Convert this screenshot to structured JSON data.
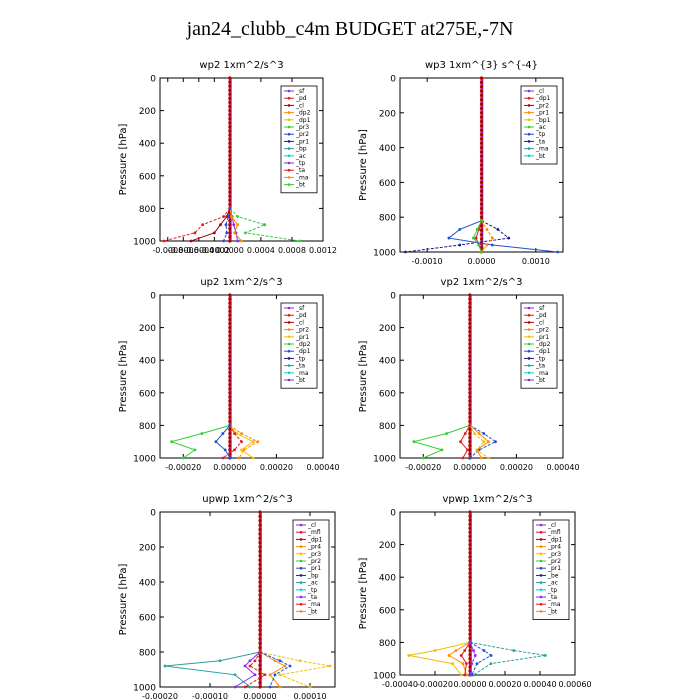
{
  "page": {
    "title": "jan24_clubb_c4m  BUDGET at275E,-7N"
  },
  "series_colors": {
    "purple": "#8a2be2",
    "red": "#e41a1c",
    "dark_red": "#b00000",
    "orange": "#ff8c00",
    "yellow": "#f0c000",
    "green": "#33cc33",
    "blue": "#1f4fd6",
    "navy": "#1a1a99",
    "teal": "#2a9fa0",
    "cyan": "#00d0e0"
  },
  "chart_data": [
    {
      "type": "line",
      "title": "wp2   1xm^2/s^3",
      "ylabel": "Pressure [hPa]",
      "ylim": [
        1000,
        0
      ],
      "yticks": [
        "0",
        "200",
        "400",
        "600",
        "800",
        "1000"
      ],
      "xlim": [
        -0.0009,
        0.0012
      ],
      "xticks": [
        "-0.0008",
        "-0.0006",
        "-0.0004",
        "-0.0002",
        "0.0000",
        "0.0004",
        "0.0008",
        "0.0012"
      ],
      "xtick_values": [
        -0.0008,
        -0.0006,
        -0.0004,
        -0.0002,
        0.0,
        0.0004,
        0.0008,
        0.0012
      ],
      "legend": [
        "_sf",
        "_pd",
        "_cl",
        "_dp2",
        "_dp1",
        "_pr3",
        "_pr2",
        "_pr1",
        "_bp",
        "_ac",
        "_tp",
        "_ta",
        "_ma",
        "_bt"
      ],
      "legend_placement": "top-right",
      "series": [
        {
          "color": "purple",
          "pressure": [
            800,
            850,
            900,
            950,
            1000
          ],
          "values": [
            0.0,
            3e-05,
            5e-05,
            8e-05,
            0.0001
          ]
        },
        {
          "color": "red",
          "pressure": [
            800,
            850,
            900,
            950,
            1000
          ],
          "values": [
            0.0,
            -8e-05,
            -0.00035,
            -0.00045,
            -0.00085
          ]
        },
        {
          "color": "dark_red",
          "pressure": [
            800,
            850,
            900,
            950,
            1000
          ],
          "values": [
            0.0,
            -4e-05,
            -0.00012,
            -0.0002,
            -0.0005
          ]
        },
        {
          "color": "green",
          "pressure": [
            800,
            850,
            900,
            950,
            1000
          ],
          "values": [
            0.0,
            0.0001,
            0.00045,
            0.0002,
            0.0009
          ]
        },
        {
          "color": "orange",
          "pressure": [
            800,
            850,
            900,
            950,
            1000
          ],
          "values": [
            0.0,
            2e-05,
            0.0001,
            6e-05,
            0.00015
          ]
        },
        {
          "color": "blue",
          "pressure": [
            800,
            850,
            900,
            950,
            1000
          ],
          "values": [
            0.0,
            -2e-05,
            -5e-05,
            -4e-05,
            -8e-05
          ]
        }
      ]
    },
    {
      "type": "line",
      "title": "wp3   1xm^{3} s^{-4}",
      "ylabel": "Pressure [hPa]",
      "ylim": [
        1000,
        0
      ],
      "yticks": [
        "0",
        "200",
        "400",
        "600",
        "800",
        "1000"
      ],
      "xlim": [
        -0.0015,
        0.0015
      ],
      "xticks": [
        "-0.0010",
        "0.0000",
        "0.0010"
      ],
      "xtick_values": [
        -0.001,
        0.0,
        0.001
      ],
      "legend": [
        "_cl",
        "_dp1",
        "_pr2",
        "_pr1",
        "_bp1",
        "_ac",
        "_tp",
        "_ta",
        "_ma",
        "_bt"
      ],
      "legend_placement": "top-right",
      "series": [
        {
          "color": "red",
          "pressure": [
            820,
            870,
            920,
            960,
            1000
          ],
          "values": [
            0.0,
            -5e-05,
            -0.0001,
            -5e-05,
            0.0
          ]
        },
        {
          "color": "navy",
          "pressure": [
            820,
            870,
            920,
            960,
            1000
          ],
          "values": [
            0.0,
            0.0003,
            0.0005,
            -0.0004,
            -0.0014
          ]
        },
        {
          "color": "blue",
          "pressure": [
            820,
            870,
            920,
            960,
            1000
          ],
          "values": [
            0.0,
            -0.0004,
            -0.0006,
            0.0002,
            0.0014
          ]
        },
        {
          "color": "orange",
          "pressure": [
            820,
            870,
            920,
            960,
            1000
          ],
          "values": [
            0.0,
            0.0001,
            0.0002,
            0.0001,
            0.0
          ]
        },
        {
          "color": "green",
          "pressure": [
            820,
            870,
            920,
            960,
            1000
          ],
          "values": [
            0.0,
            -8e-05,
            -0.00015,
            -5e-05,
            0.0
          ]
        }
      ]
    },
    {
      "type": "line",
      "title": "up2   1xm^2/s^3",
      "ylabel": "Pressure [hPa]",
      "ylim": [
        1000,
        0
      ],
      "yticks": [
        "0",
        "200",
        "400",
        "600",
        "800",
        "1000"
      ],
      "xlim": [
        -0.0003,
        0.0004
      ],
      "xticks": [
        "-0.00020",
        "0.00000",
        "0.00020",
        "0.00040"
      ],
      "xtick_values": [
        -0.0002,
        0.0,
        0.0002,
        0.0004
      ],
      "legend": [
        "_sf",
        "_pd",
        "_cl",
        "_pr2",
        "_pr1",
        "_dp2",
        "_dp1",
        "_tp",
        "_ta",
        "_ma",
        "_bt"
      ],
      "legend_placement": "top-right",
      "series": [
        {
          "color": "green",
          "pressure": [
            800,
            850,
            900,
            950,
            1000
          ],
          "values": [
            0.0,
            -0.00012,
            -0.00025,
            -0.00015,
            -0.0002
          ]
        },
        {
          "color": "orange",
          "pressure": [
            800,
            850,
            900,
            950,
            1000
          ],
          "values": [
            0.0,
            5e-05,
            0.00012,
            6e-05,
            4e-05
          ]
        },
        {
          "color": "yellow",
          "pressure": [
            800,
            850,
            900,
            950,
            1000
          ],
          "values": [
            0.0,
            3e-05,
            0.0001,
            5e-05,
            0.0001
          ]
        },
        {
          "color": "red",
          "pressure": [
            800,
            850,
            900,
            950,
            1000
          ],
          "values": [
            0.0,
            2e-05,
            5e-05,
            2e-05,
            -3e-05
          ]
        },
        {
          "color": "blue",
          "pressure": [
            800,
            850,
            900,
            950,
            1000
          ],
          "values": [
            0.0,
            -3e-05,
            -6e-05,
            -2e-05,
            0.0
          ]
        }
      ]
    },
    {
      "type": "line",
      "title": "vp2   1xm^2/s^3",
      "ylabel": "Pressure [hPa]",
      "ylim": [
        1000,
        0
      ],
      "yticks": [
        "0",
        "200",
        "400",
        "600",
        "800",
        "1000"
      ],
      "xlim": [
        -0.0003,
        0.0004
      ],
      "xticks": [
        "-0.00020",
        "0.00000",
        "0.00020",
        "0.00040"
      ],
      "xtick_values": [
        -0.0002,
        0.0,
        0.0002,
        0.0004
      ],
      "legend": [
        "_sf",
        "_pd",
        "_cl",
        "_pr2",
        "_pr1",
        "_dp2",
        "_dp1",
        "_tp",
        "_ta",
        "_ma",
        "_bt"
      ],
      "legend_placement": "top-right",
      "series": [
        {
          "color": "green",
          "pressure": [
            800,
            850,
            900,
            950,
            1000
          ],
          "values": [
            0.0,
            -0.0001,
            -0.00024,
            -0.00012,
            -0.0002
          ]
        },
        {
          "color": "blue",
          "pressure": [
            800,
            850,
            900,
            950,
            1000
          ],
          "values": [
            0.0,
            6e-05,
            0.00011,
            4e-05,
            0.0
          ]
        },
        {
          "color": "orange",
          "pressure": [
            800,
            850,
            900,
            950,
            1000
          ],
          "values": [
            0.0,
            4e-05,
            8e-05,
            3e-05,
            5e-05
          ]
        },
        {
          "color": "yellow",
          "pressure": [
            800,
            850,
            900,
            950,
            1000
          ],
          "values": [
            0.0,
            2e-05,
            6e-05,
            3e-05,
            8e-05
          ]
        },
        {
          "color": "red",
          "pressure": [
            800,
            850,
            900,
            950,
            1000
          ],
          "values": [
            0.0,
            -2e-05,
            -4e-05,
            -1e-05,
            -3e-05
          ]
        }
      ]
    },
    {
      "type": "line",
      "title": "upwp   1xm^2/s^3",
      "ylabel": "Pressure [hPa]",
      "ylim": [
        1000,
        0
      ],
      "yticks": [
        "0",
        "200",
        "400",
        "600",
        "800",
        "1000"
      ],
      "xlim": [
        -0.0002,
        0.00015
      ],
      "xticks": [
        "-0.00020",
        "-0.00010",
        "0.00000",
        "0.00010"
      ],
      "xtick_values": [
        -0.0002,
        -0.0001,
        0.0,
        0.0001
      ],
      "legend": [
        "_cl",
        "_mfl",
        "_dp1",
        "_pr4",
        "_pr3",
        "_pr2",
        "_pr1",
        "_bp",
        "_ac",
        "_tp",
        "_ta",
        "_ma",
        "_bt"
      ],
      "legend_placement": "top-right",
      "series": [
        {
          "color": "teal",
          "pressure": [
            800,
            850,
            880,
            930,
            1000
          ],
          "values": [
            0.0,
            -8e-05,
            -0.00019,
            -5e-05,
            -2e-05
          ]
        },
        {
          "color": "yellow",
          "pressure": [
            800,
            850,
            880,
            930,
            1000
          ],
          "values": [
            0.0,
            8e-05,
            0.00014,
            4e-05,
            0.0001
          ]
        },
        {
          "color": "orange",
          "pressure": [
            800,
            850,
            880,
            930,
            1000
          ],
          "values": [
            0.0,
            3e-05,
            5e-05,
            2e-05,
            4e-05
          ]
        },
        {
          "color": "blue",
          "pressure": [
            800,
            850,
            880,
            930,
            1000
          ],
          "values": [
            0.0,
            4e-05,
            6e-05,
            3e-05,
            2e-05
          ]
        },
        {
          "color": "purple",
          "pressure": [
            800,
            850,
            880,
            930,
            1000
          ],
          "values": [
            0.0,
            -2e-05,
            -3e-05,
            -1e-05,
            -5e-05
          ]
        },
        {
          "color": "red",
          "pressure": [
            800,
            850,
            880,
            930,
            1000
          ],
          "values": [
            0.0,
            -1e-05,
            -2e-05,
            1e-05,
            -3e-05
          ]
        }
      ]
    },
    {
      "type": "line",
      "title": "vpwp   1xm^2/s^3",
      "ylabel": "Pressure [hPa]",
      "ylim": [
        1000,
        0
      ],
      "yticks": [
        "0",
        "200",
        "400",
        "600",
        "800",
        "1000"
      ],
      "xlim": [
        -0.0004,
        0.0006
      ],
      "xticks": [
        "-0.00040",
        "-0.00020",
        "0.00000",
        "0.00020",
        "0.00040",
        "0.00060"
      ],
      "xtick_values": [
        -0.0004,
        -0.0002,
        0.0,
        0.0002,
        0.0004,
        0.0006
      ],
      "legend": [
        "_cl",
        "_mfl",
        "_dp1",
        "_pr4",
        "_pr3",
        "_pr2",
        "_pr1",
        "_be",
        "_ac",
        "_tp",
        "_ta",
        "_ma",
        "_bt"
      ],
      "legend_placement": "top-right",
      "series": [
        {
          "color": "yellow",
          "pressure": [
            800,
            850,
            880,
            930,
            1000
          ],
          "values": [
            0.0,
            -0.0002,
            -0.00035,
            -0.0001,
            -5e-05
          ]
        },
        {
          "color": "teal",
          "pressure": [
            800,
            850,
            880,
            930,
            1000
          ],
          "values": [
            0.0,
            0.00025,
            0.00043,
            0.00012,
            2e-05
          ]
        },
        {
          "color": "orange",
          "pressure": [
            800,
            850,
            880,
            930,
            1000
          ],
          "values": [
            0.0,
            -8e-05,
            -0.00012,
            -4e-05,
            -2e-05
          ]
        },
        {
          "color": "blue",
          "pressure": [
            800,
            850,
            880,
            930,
            1000
          ],
          "values": [
            0.0,
            8e-05,
            0.00012,
            4e-05,
            1e-05
          ]
        },
        {
          "color": "red",
          "pressure": [
            800,
            850,
            880,
            930,
            1000
          ],
          "values": [
            0.0,
            -3e-05,
            -5e-05,
            -2e-05,
            -3e-05
          ]
        },
        {
          "color": "purple",
          "pressure": [
            800,
            850,
            880,
            930,
            1000
          ],
          "values": [
            0.0,
            2e-05,
            3e-05,
            1e-05,
            0.0
          ]
        }
      ]
    }
  ]
}
